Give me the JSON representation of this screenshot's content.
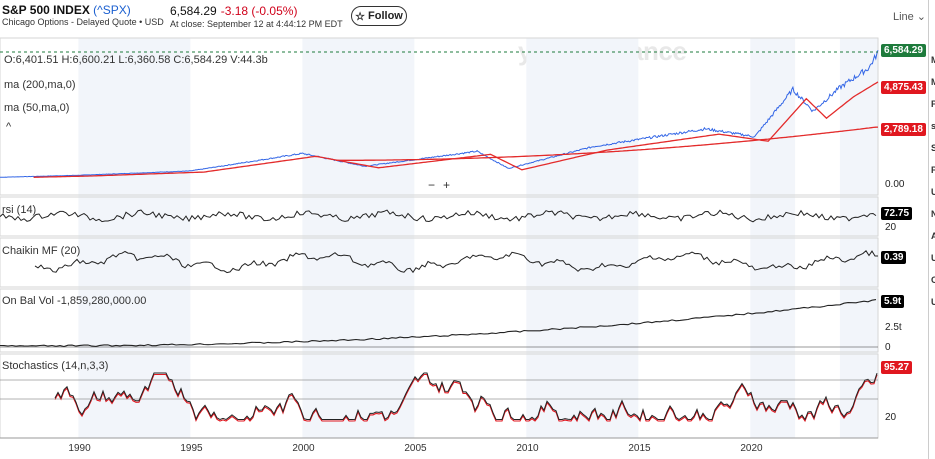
{
  "header": {
    "title": "S&P 500 INDEX",
    "symbol": "(^SPX)",
    "subtitle": "Chicago Options - Delayed Quote • USD",
    "price": "6,584.29",
    "change": "-3.18",
    "change_pct": "(-0.05%)",
    "close_time": "At close: September 12 at 4:44:12 PM EDT",
    "follow_label": "Follow",
    "chart_type_label": "Line"
  },
  "watermark": "yahoo/finance",
  "ohlc": "O:6,401.51  H:6,600.21  L:6,360.58  C:6,584.29  V:44.3b",
  "indicators": {
    "ma200": "ma (200,ma,0)",
    "ma50": "ma (50,ma,0)",
    "rsi": "rsi (14)",
    "chaikin": "Chaikin MF (20)",
    "obv": "On Bal Vol  -1,859,280,000.00",
    "stoch": "Stochastics (14,n,3,3)"
  },
  "tags": {
    "price": "6,584.29",
    "ma_a": "4,875.43",
    "ma_b": "2,789.18",
    "rsi": "72.75",
    "chaikin": "0.39",
    "obv": "5.9t",
    "stoch": "95.27"
  },
  "yticks": {
    "main_zero": "0.00",
    "rsi_20": "20",
    "obv_25": "2.5t",
    "obv_0": "0",
    "stoch_20": "20"
  },
  "zoom": {
    "minus": "−",
    "plus": "+"
  },
  "right_strip": [
    "M",
    "M",
    "P",
    "s",
    "S",
    "P",
    "U",
    "N",
    "A",
    "U",
    "C",
    "U"
  ],
  "colors": {
    "price_line": "#3366e6",
    "ma_line": "#e32b2b",
    "tag_green": "#1e7b3c",
    "tag_red": "#e0171f",
    "tag_black": "#000000"
  },
  "chart_data": {
    "type": "line",
    "x_axis_ticks": [
      "1990",
      "1995",
      "2000",
      "2005",
      "2010",
      "2015",
      "2020"
    ],
    "x_range_years": [
      1986.5,
      2025.7
    ],
    "series": [
      {
        "name": "ma (200,ma,0)",
        "values": []
      },
      {
        "name": "ma (50,ma,0)",
        "values": []
      }
    ],
    "last": {
      "close": 6584.29,
      "ma_a": 4875.43,
      "ma_b": 2789.18,
      "rsi": 72.75,
      "chaikin": 0.39,
      "stoch": 95.27
    },
    "grid": true
  }
}
